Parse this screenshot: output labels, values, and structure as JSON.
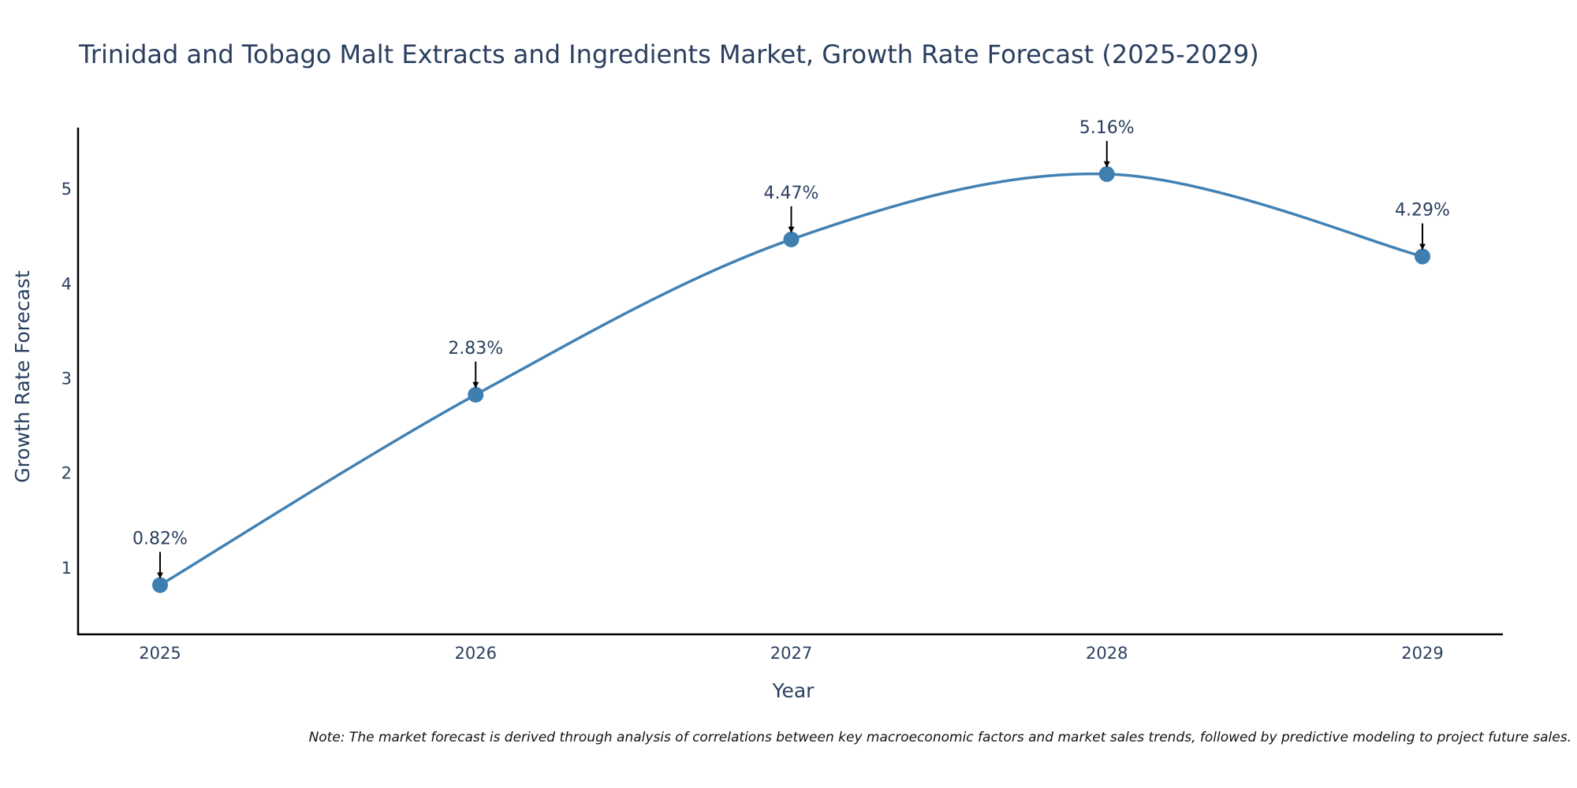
{
  "chart_data": {
    "type": "line",
    "title": "Trinidad and Tobago Malt Extracts and Ingredients Market, Growth Rate Forecast (2025-2029)",
    "xlabel": "Year",
    "ylabel": "Growth Rate Forecast",
    "categories": [
      "2025",
      "2026",
      "2027",
      "2028",
      "2029"
    ],
    "values": [
      0.82,
      2.83,
      4.47,
      5.16,
      4.29
    ],
    "data_labels": [
      "0.82%",
      "2.83%",
      "4.47%",
      "5.16%",
      "4.29%"
    ],
    "y_ticks": [
      1,
      2,
      3,
      4,
      5
    ],
    "ylim": [
      0.3,
      5.65
    ],
    "grid": false,
    "line_color": "#4281b3",
    "marker_color": "#3f7fb0",
    "note": "Note: The market forecast is derived through analysis of correlations between key macroeconomic factors and market sales trends, followed by predictive modeling to project future sales."
  }
}
